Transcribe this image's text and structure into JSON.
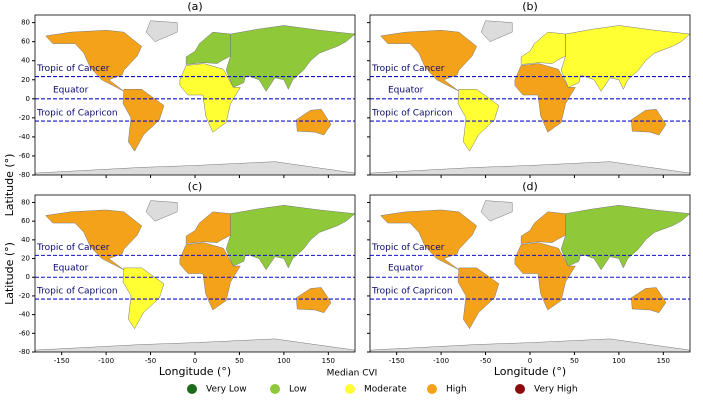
{
  "panels": [
    {
      "label": "(a)"
    },
    {
      "label": "(b)"
    },
    {
      "label": "(c)"
    },
    {
      "label": "(d)"
    }
  ],
  "axes": {
    "xlabel": "Longitude (°)",
    "ylabel": "Latitude (°)",
    "xlim": [
      -180,
      180
    ],
    "ylim": [
      -80,
      88
    ],
    "xticks": [
      -150,
      -100,
      -50,
      0,
      50,
      100,
      150
    ],
    "yticks": [
      -80,
      -60,
      -40,
      -20,
      0,
      20,
      40,
      60,
      80
    ]
  },
  "reference_lines": [
    {
      "label": "Tropic of Cancer",
      "value": 23.4
    },
    {
      "label": "Equator",
      "value": 0
    },
    {
      "label": "Tropic of Capricon",
      "value": -23.4
    }
  ],
  "legend": {
    "title": "Median CVI",
    "items": [
      {
        "label": "Very Low",
        "color": "#1a6b1a"
      },
      {
        "label": "Low",
        "color": "#8fc93a"
      },
      {
        "label": "Moderate",
        "color": "#ffff33"
      },
      {
        "label": "High",
        "color": "#f5a21b"
      },
      {
        "label": "Very High",
        "color": "#8b0a0a"
      }
    ]
  }
}
